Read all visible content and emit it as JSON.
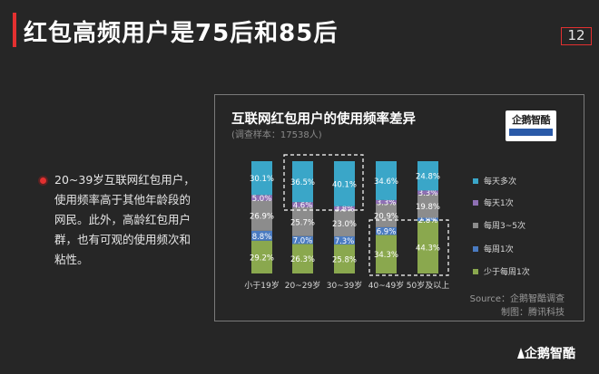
{
  "page": {
    "title": "红包高频用户是75后和85后",
    "number": "12"
  },
  "bullet": {
    "text": "20~39岁互联网红包用户，使用频率高于其他年龄段的网民。此外，高龄红包用户群，也有可观的使用频次和粘性。"
  },
  "chart_data": {
    "type": "bar",
    "stacked": true,
    "title": "互联网红包用户的使用频率差异",
    "subtitle": "(调查样本：17538人)",
    "categories": [
      "小于19岁",
      "20~29岁",
      "30~39岁",
      "40~49岁",
      "50岁及以上"
    ],
    "unit": "%",
    "ylim": [
      0,
      100
    ],
    "series": [
      {
        "name": "少于每周1次",
        "color": "#8aa84e",
        "values": [
          29.2,
          26.3,
          25.8,
          34.3,
          44.3
        ]
      },
      {
        "name": "每周1次",
        "color": "#4a7bc1",
        "values": [
          8.8,
          7.0,
          7.3,
          6.9,
          2.8
        ]
      },
      {
        "name": "每周3~5次",
        "color": "#8c8c8c",
        "values": [
          26.9,
          25.7,
          23.0,
          20.9,
          19.8
        ]
      },
      {
        "name": "每天1次",
        "color": "#8e6fb3",
        "values": [
          5.0,
          4.6,
          3.8,
          3.3,
          3.3
        ]
      },
      {
        "name": "每天多次",
        "color": "#3aa6c8",
        "values": [
          30.1,
          36.5,
          40.1,
          34.6,
          24.8
        ]
      }
    ],
    "legend_order": [
      "每天多次",
      "每天1次",
      "每周3~5次",
      "每周1次",
      "少于每周1次"
    ],
    "legend_position": "right",
    "highlights": [
      {
        "categories": [
          "20~29岁",
          "30~39岁"
        ],
        "series": "每天多次"
      },
      {
        "categories": [
          "40~49岁",
          "50岁及以上"
        ],
        "series": "少于每周1次"
      }
    ]
  },
  "logo": {
    "badge_text": "企鹅智酷",
    "brand": "企鹅智酷"
  },
  "source": {
    "line1": "Source：企鹅智酷调查",
    "line2": "制图：腾讯科技"
  }
}
